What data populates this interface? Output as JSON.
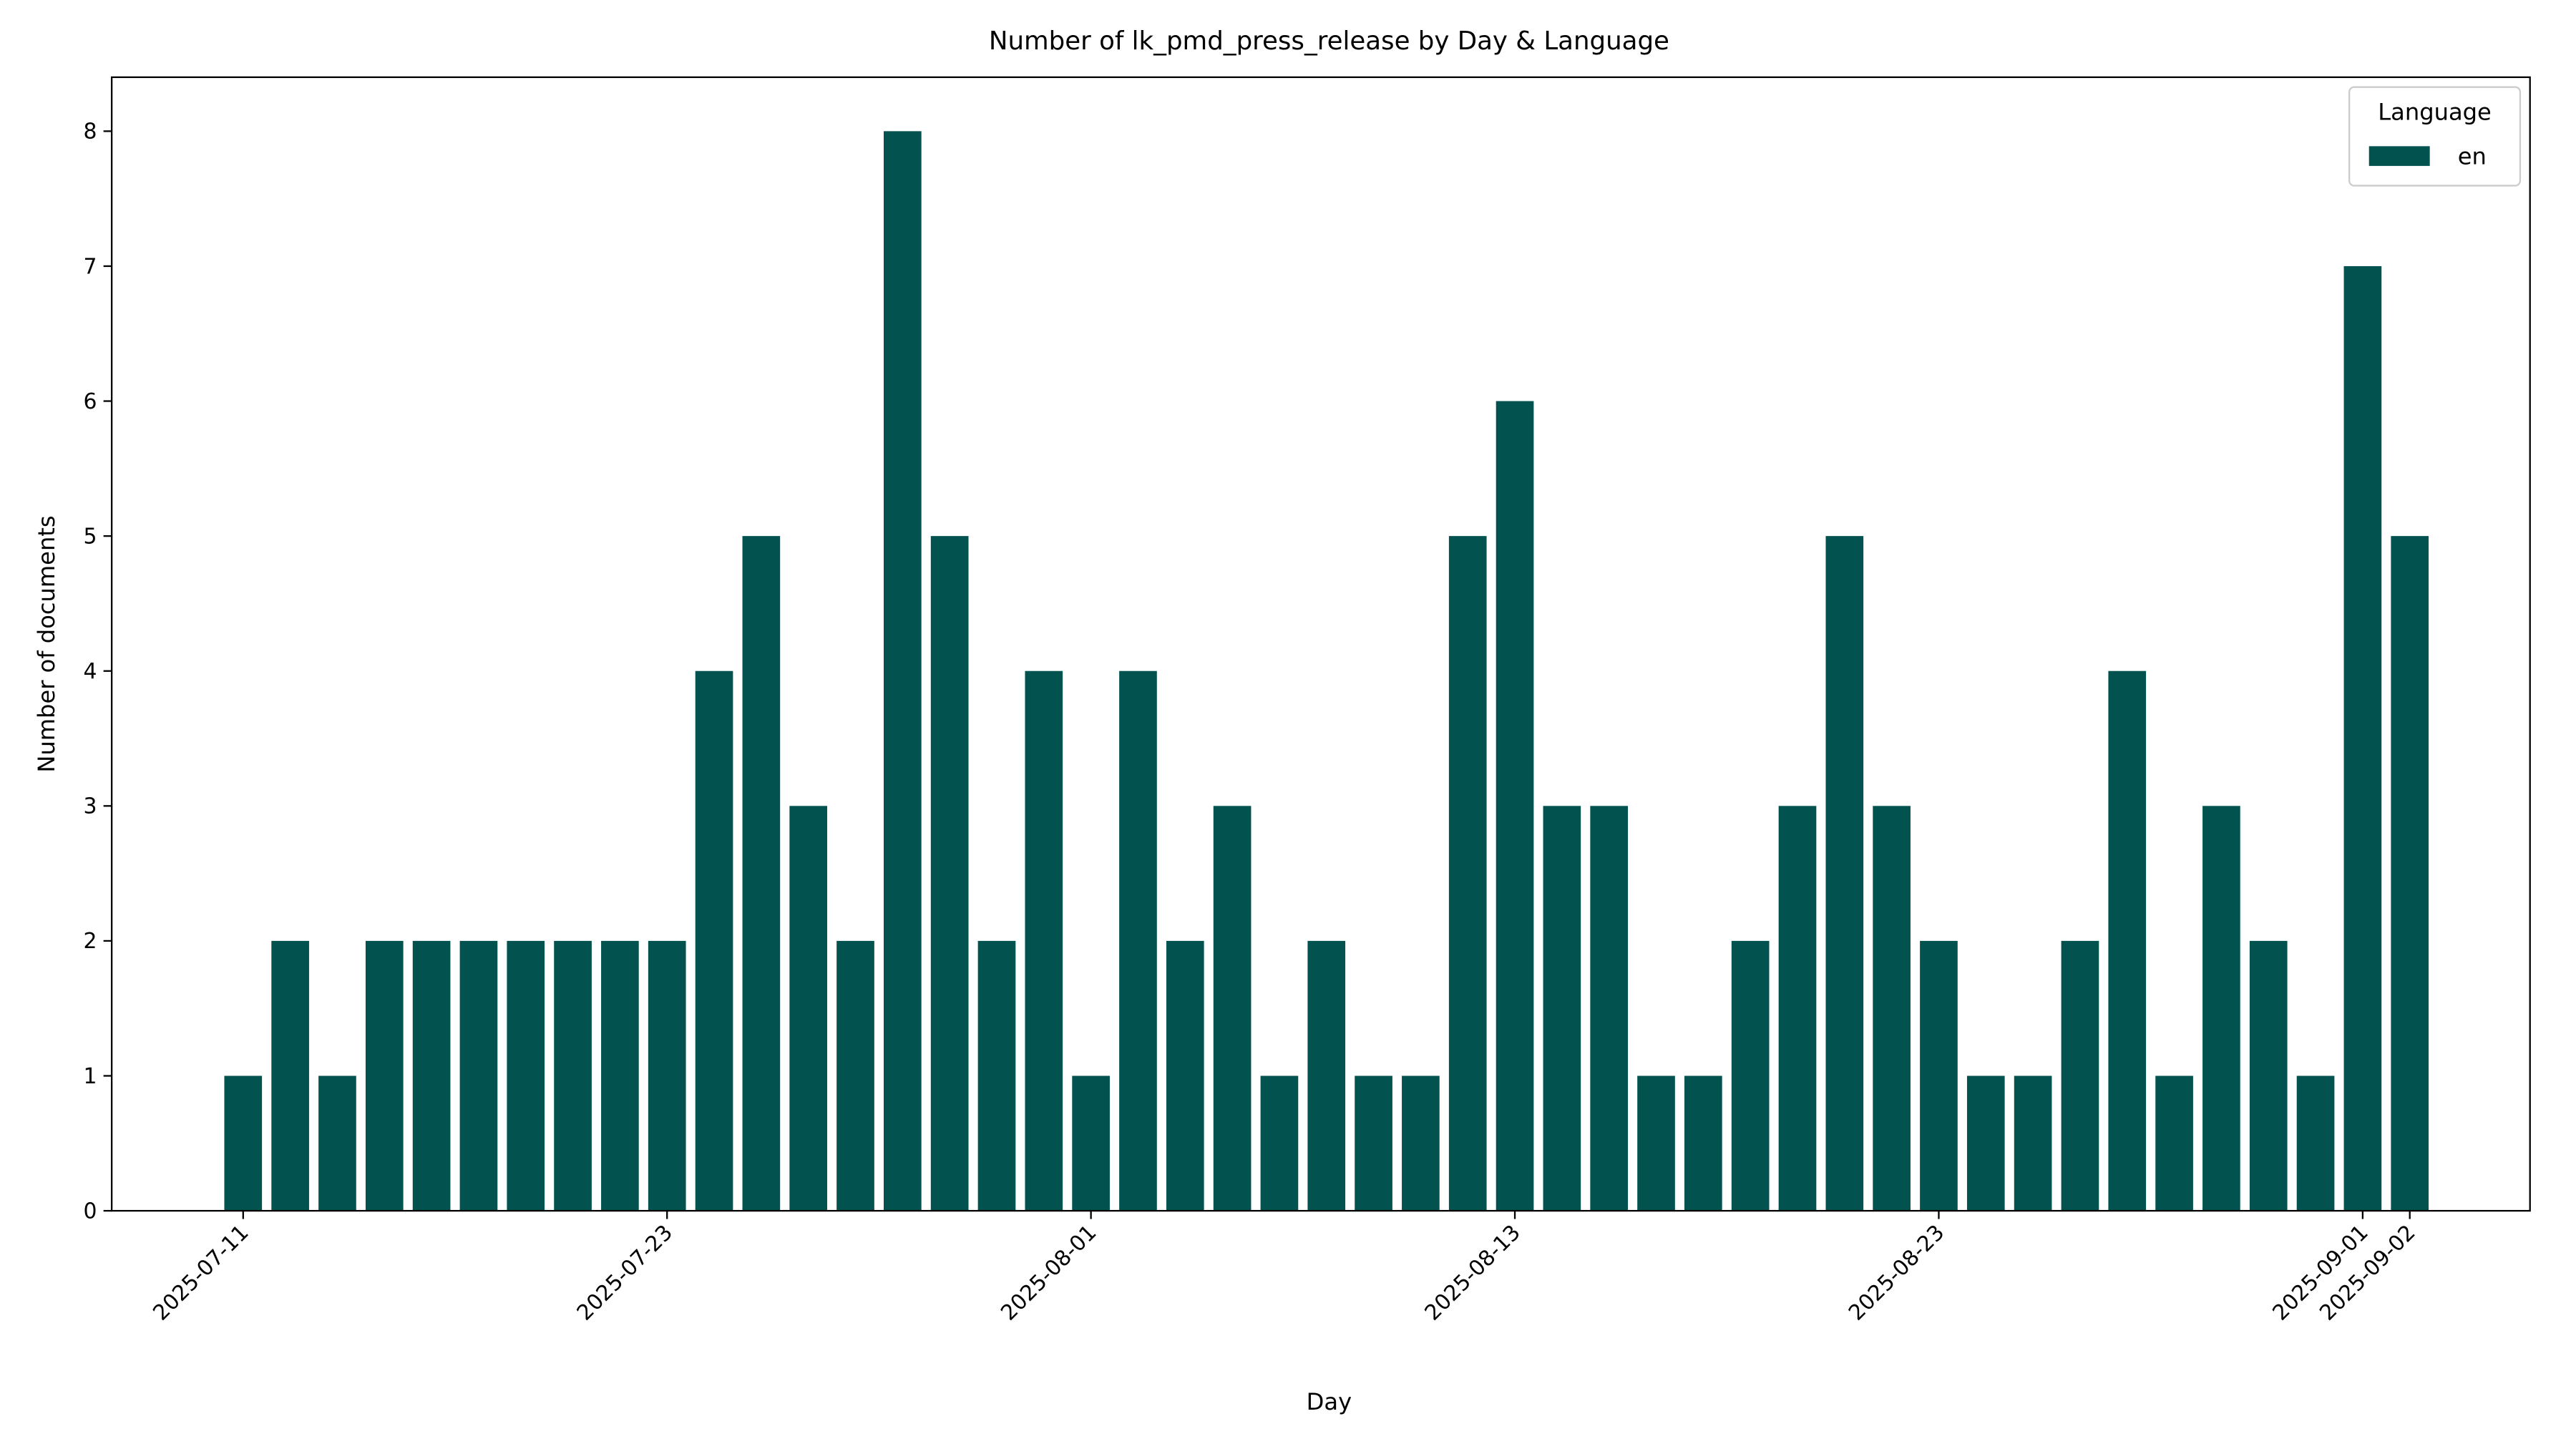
{
  "chart_data": {
    "type": "bar",
    "title": "Number of lk_pmd_press_release by Day & Language",
    "x_label": "Day",
    "y_label": "Number of documents",
    "categories": [
      "2025-07-11",
      null,
      null,
      null,
      null,
      null,
      null,
      null,
      null,
      "2025-07-23",
      null,
      null,
      null,
      null,
      null,
      null,
      null,
      null,
      "2025-08-01",
      null,
      null,
      null,
      null,
      null,
      null,
      null,
      null,
      "2025-08-13",
      null,
      null,
      null,
      null,
      null,
      null,
      null,
      null,
      "2025-08-23",
      null,
      null,
      null,
      null,
      null,
      null,
      null,
      null,
      "2025-09-01",
      "2025-09-02"
    ],
    "series": [
      {
        "name": "en",
        "color": "#02534f",
        "values": [
          1,
          2,
          1,
          2,
          2,
          2,
          2,
          2,
          2,
          2,
          4,
          5,
          3,
          2,
          8,
          5,
          2,
          4,
          1,
          4,
          2,
          3,
          1,
          2,
          1,
          1,
          5,
          6,
          3,
          3,
          1,
          1,
          2,
          3,
          5,
          3,
          2,
          1,
          1,
          2,
          4,
          1,
          3,
          2,
          1,
          7,
          5
        ]
      }
    ],
    "legend_title": "Language",
    "legend": "upper right",
    "ylim": [
      0,
      8.4
    ],
    "yticks": [
      0,
      1,
      2,
      3,
      4,
      5,
      6,
      7,
      8
    ]
  }
}
